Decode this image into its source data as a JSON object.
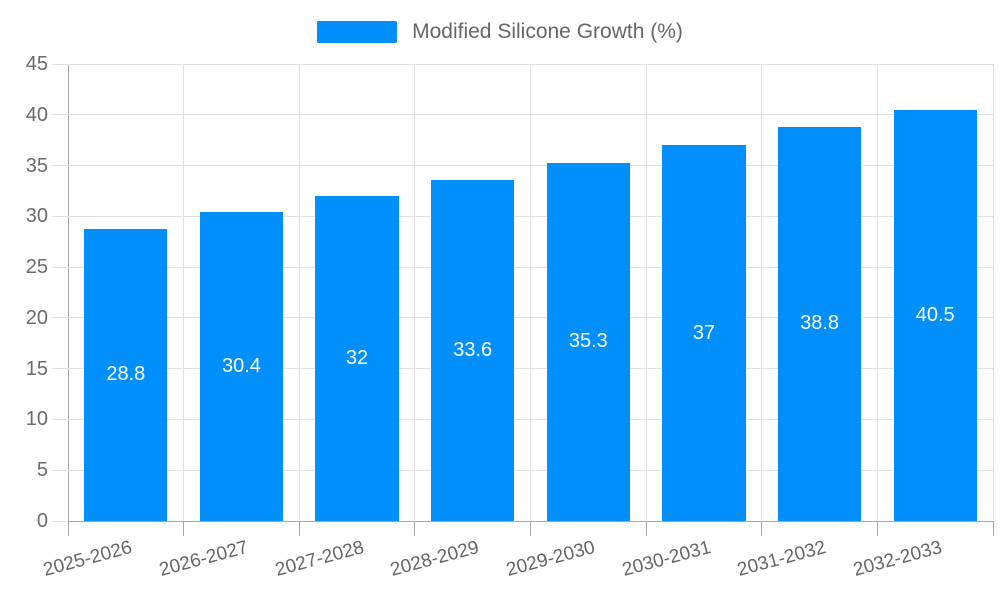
{
  "chart_data": {
    "type": "bar",
    "title": "",
    "legend": "Modified Silicone Growth (%)",
    "legend_position": "top-center",
    "categories": [
      "2025-2026",
      "2026-2027",
      "2027-2028",
      "2028-2029",
      "2029-2030",
      "2030-2031",
      "2031-2032",
      "2032-2033"
    ],
    "values": [
      28.8,
      30.4,
      32,
      33.6,
      35.3,
      37,
      38.8,
      40.5
    ],
    "value_labels": [
      "28.8",
      "30.4",
      "32",
      "33.6",
      "35.3",
      "37",
      "38.8",
      "40.5"
    ],
    "xlabel": "",
    "ylabel": "",
    "ylim": [
      0,
      45
    ],
    "ytick_step": 5,
    "yticks": [
      0,
      5,
      10,
      15,
      20,
      25,
      30,
      35,
      40,
      45
    ],
    "grid": "on",
    "colors": {
      "bar": "#008FFB",
      "grid": "#e2e2e2",
      "axis": "#a9a9a9",
      "text": "#666666",
      "bar_label": "#ffffff",
      "background": "#ffffff"
    }
  }
}
